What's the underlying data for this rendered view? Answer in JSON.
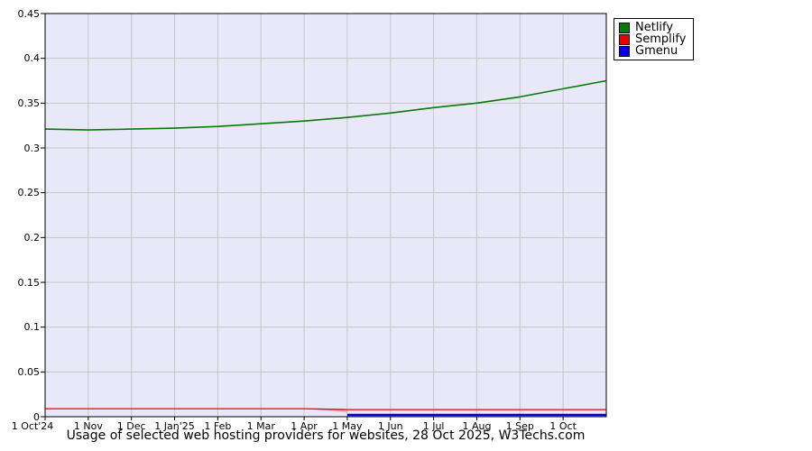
{
  "title": "Usage of selected web hosting providers for websites, 28 Oct 2025, W3Techs.com",
  "legend": {
    "items": [
      {
        "label": "Netlify",
        "color": "#067a06"
      },
      {
        "label": "Semplify",
        "color": "#ee0000"
      },
      {
        "label": "Gmenu",
        "color": "#0000dd"
      }
    ]
  },
  "colors": {
    "plot_background": "#e8e8f8",
    "gridline": "#c6c6c6",
    "plot_border": "#000000",
    "fade_artifact": "#f08080"
  },
  "chart_data": {
    "type": "line",
    "title": "Usage of selected web hosting providers for websites, 28 Oct 2025, W3Techs.com",
    "xlabel": "",
    "ylabel": "",
    "ylim": [
      0,
      0.45
    ],
    "y_tick_values": [
      0.45,
      0.4,
      0.35,
      0.3,
      0.25,
      0.2,
      0.15,
      0.1,
      0.05,
      0
    ],
    "y_tick_labels": [
      "0.45",
      "0.4",
      "0.35",
      "0.3",
      "0.25",
      "0.2",
      "0.15",
      "0.1",
      "0.05",
      "0"
    ],
    "x_tick_labels": [
      "1 Oct'24",
      "1 Nov",
      "1 Dec",
      "1 Jan'25",
      "1 Feb",
      "1 Mar",
      "1 Apr",
      "1 May",
      "1 Jun",
      "1 Jul",
      "1 Aug",
      "1 Sep",
      "1 Oct"
    ],
    "x_months_span": 13,
    "grid": true,
    "legend_position": "top-right-outside",
    "series": [
      {
        "name": "Netlify",
        "color": "#067a06",
        "stroke_width": 1.6,
        "x_months": [
          0,
          1,
          2,
          3,
          4,
          5,
          6,
          7,
          8,
          9,
          10,
          11,
          12,
          13
        ],
        "values": [
          0.321,
          0.32,
          0.321,
          0.322,
          0.324,
          0.327,
          0.33,
          0.334,
          0.339,
          0.345,
          0.35,
          0.357,
          0.366,
          0.375
        ]
      },
      {
        "name": "Semplify",
        "color": "#ee0000",
        "stroke_width": 1.3,
        "x_months": [
          0,
          1,
          2,
          3,
          4,
          5,
          6,
          7,
          8,
          9,
          10,
          11,
          12,
          13
        ],
        "values": [
          0.009,
          0.009,
          0.009,
          0.009,
          0.009,
          0.009,
          0.009,
          0.008,
          0.008,
          0.008,
          0.008,
          0.008,
          0.008,
          0.008
        ]
      },
      {
        "name": "Gmenu",
        "color": "#0000dd",
        "stroke_width": 2.5,
        "x_months": [
          7,
          8,
          9,
          10,
          11,
          12,
          13
        ],
        "values": [
          0.002,
          0.002,
          0.002,
          0.002,
          0.002,
          0.002,
          0.002
        ]
      }
    ]
  }
}
